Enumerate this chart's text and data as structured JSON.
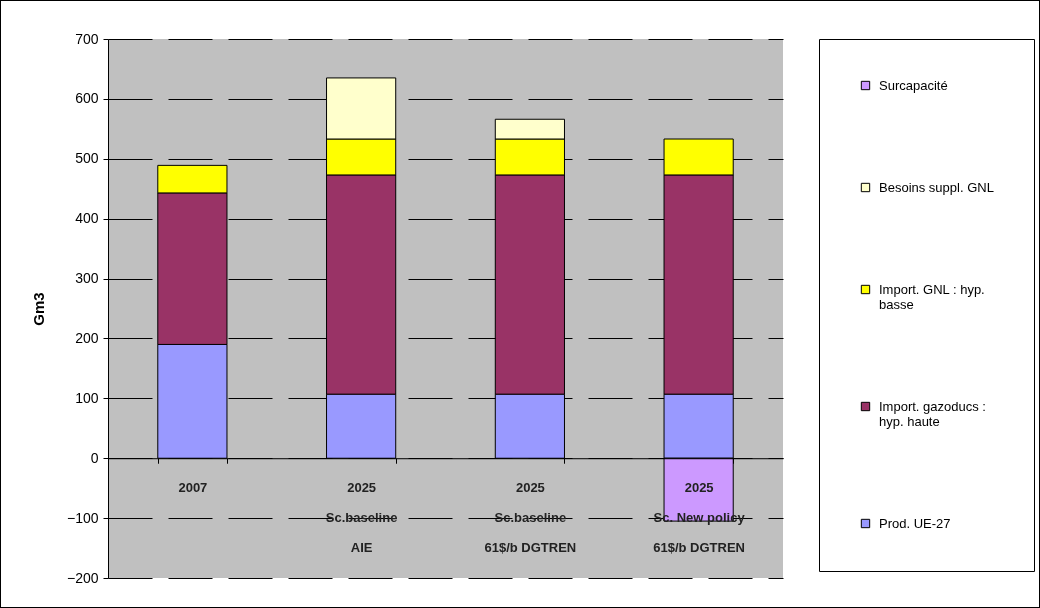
{
  "chart_data": {
    "type": "bar",
    "stacked": true,
    "ylabel": "Gm3",
    "categories": [
      "2007",
      "2025\nSc.baseline\nAIE",
      "2025\nSc.baseline\n61$/b DGTREN",
      "2025\nSc. New policy\n61$/b DGTREN"
    ],
    "series": [
      {
        "name": "Prod. UE-27",
        "color": "#9999ff",
        "values": [
          190,
          107,
          107,
          107
        ]
      },
      {
        "name": "Import. gazoducs : hyp. haute",
        "color": "#993366",
        "values": [
          253,
          366,
          366,
          366
        ]
      },
      {
        "name": "Import. GNL : hyp. basse",
        "color": "#ffff00",
        "values": [
          46,
          60,
          60,
          60
        ]
      },
      {
        "name": "Besoins suppl. GNL",
        "color": "#ffffcc",
        "values": [
          null,
          102,
          33,
          null
        ]
      },
      {
        "name": "Surcapacité",
        "color": "#cc99ff",
        "values": [
          null,
          null,
          null,
          -105
        ]
      }
    ],
    "ylim": [
      -200,
      700
    ],
    "yticks": [
      -200,
      -100,
      0,
      100,
      200,
      300,
      400,
      500,
      600,
      700
    ],
    "grid": "y",
    "legend": "right"
  }
}
